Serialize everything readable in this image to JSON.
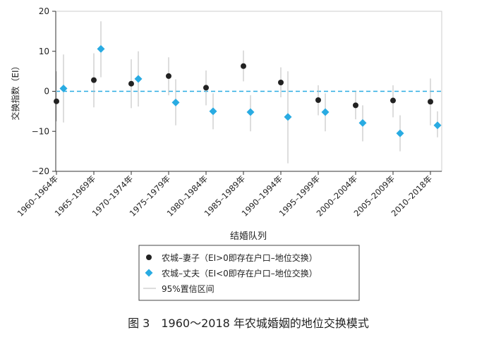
{
  "chart_data": {
    "type": "scatter",
    "xlabel": "结婚队列",
    "ylabel": "交换指数（EI）",
    "caption": "图 3　1960～2018 年农城婚姻的地位交换模式",
    "ylim": [
      -20,
      20
    ],
    "yticks": [
      20,
      10,
      0,
      -10,
      -20
    ],
    "reference_line": 0,
    "categories": [
      "1960–1964年",
      "1965–1969年",
      "1970–1974年",
      "1975–1979年",
      "1980–1984年",
      "1985–1989年",
      "1990–1994年",
      "1995–1999年",
      "2000–2004年",
      "2005–2009年",
      "2010–2018年"
    ],
    "series": [
      {
        "name": "农城–妻子（EI>0即存在户口–地位交换）",
        "marker": "circle",
        "color": "#222222",
        "values": [
          -2.5,
          2.8,
          1.9,
          3.8,
          0.9,
          6.3,
          2.2,
          -2.2,
          -3.5,
          -2.3,
          -2.6
        ],
        "ci_low": [
          -7.5,
          -4.0,
          -4.2,
          -1.0,
          -3.5,
          2.5,
          -1.5,
          -6.0,
          -7.0,
          -6.5,
          -8.5
        ],
        "ci_high": [
          5.0,
          9.5,
          8.0,
          8.5,
          5.2,
          10.2,
          6.0,
          1.5,
          0.0,
          1.5,
          3.2
        ]
      },
      {
        "name": "农城–丈夫（EI<0即存在户口–地位交换）",
        "marker": "diamond",
        "color": "#29abe2",
        "values": [
          0.7,
          10.6,
          3.1,
          -2.8,
          -5.0,
          -5.2,
          -6.4,
          -5.2,
          -7.9,
          -10.5,
          -8.5
        ],
        "ci_low": [
          -7.8,
          3.5,
          -3.8,
          -8.5,
          -9.5,
          -10.0,
          -18.0,
          -10.0,
          -12.5,
          -15.0,
          -11.5
        ],
        "ci_high": [
          9.2,
          17.5,
          10.0,
          3.0,
          -0.5,
          -1.0,
          5.0,
          -0.5,
          -3.5,
          -6.0,
          -5.0
        ]
      }
    ],
    "ci_legend": "95%置信区间",
    "colors": {
      "ci_line": "#bbbbbb",
      "zero_line": "#29abe2",
      "axis": "#333333",
      "frame": "#cccccc"
    },
    "grid": false,
    "legend_position": "bottom"
  }
}
